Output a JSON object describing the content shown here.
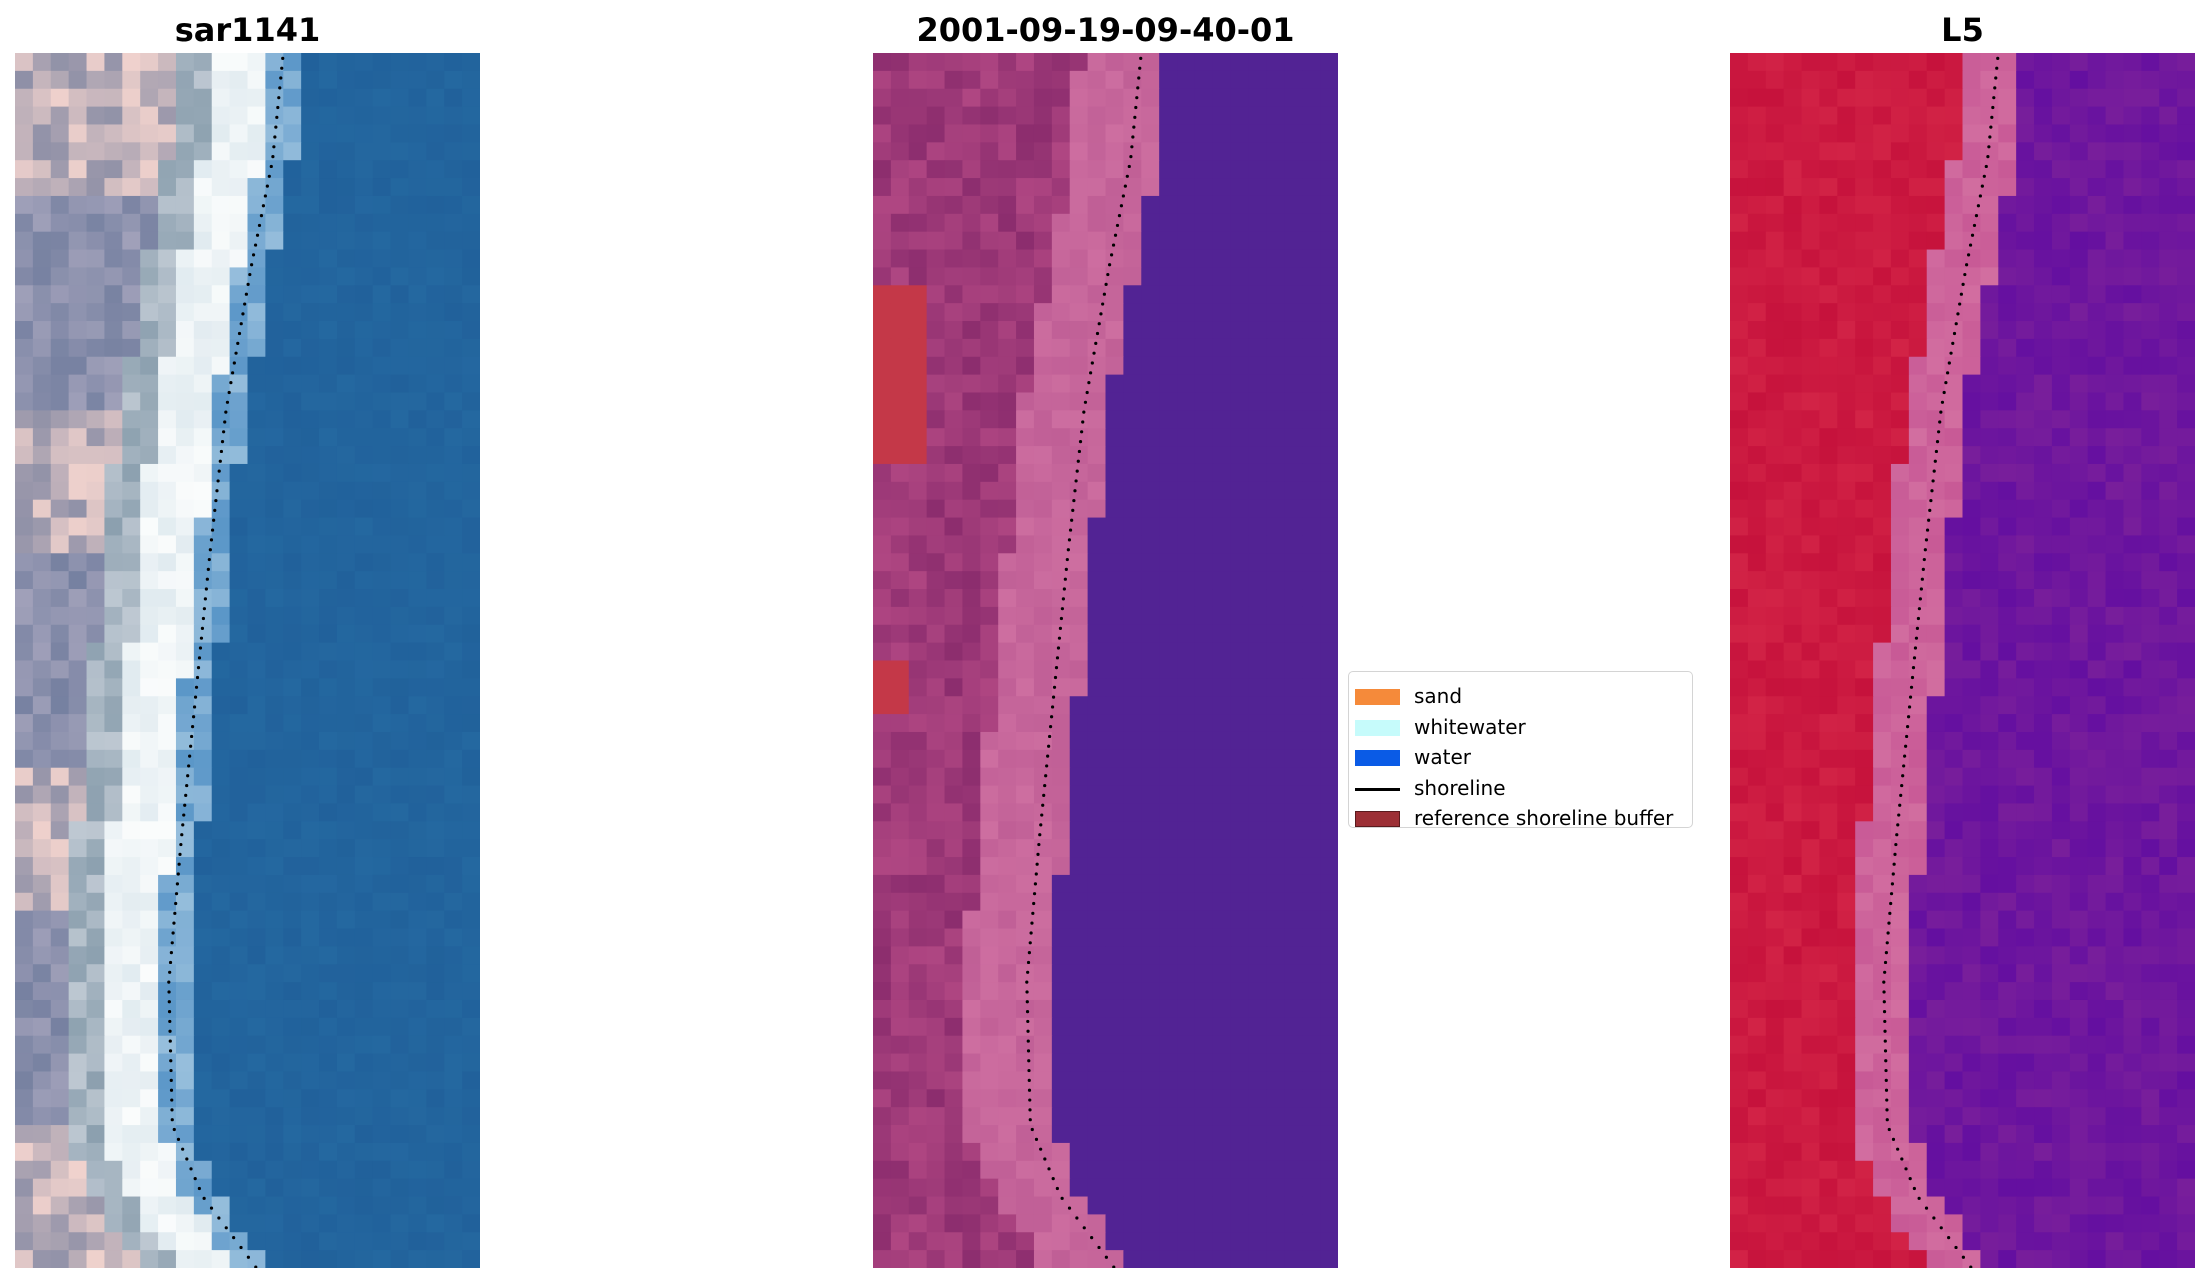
{
  "panels": [
    {
      "title": "sar1141",
      "kind": "rgb"
    },
    {
      "title": "2001-09-19-09-40-01",
      "kind": "classified"
    },
    {
      "title": "L5",
      "kind": "mndwi"
    }
  ],
  "legend": {
    "items": [
      {
        "label": "sand",
        "color": "#f58a3a",
        "type": "patch"
      },
      {
        "label": "whitewater",
        "color": "#c6fbfb",
        "type": "patch"
      },
      {
        "label": "water",
        "color": "#0a5be6",
        "type": "patch"
      },
      {
        "label": "shoreline",
        "color": "#000000",
        "type": "line"
      },
      {
        "label": "reference shoreline buffer",
        "color": "#9c2f35",
        "type": "patch",
        "edge": "#5a1a1d"
      }
    ]
  }
}
